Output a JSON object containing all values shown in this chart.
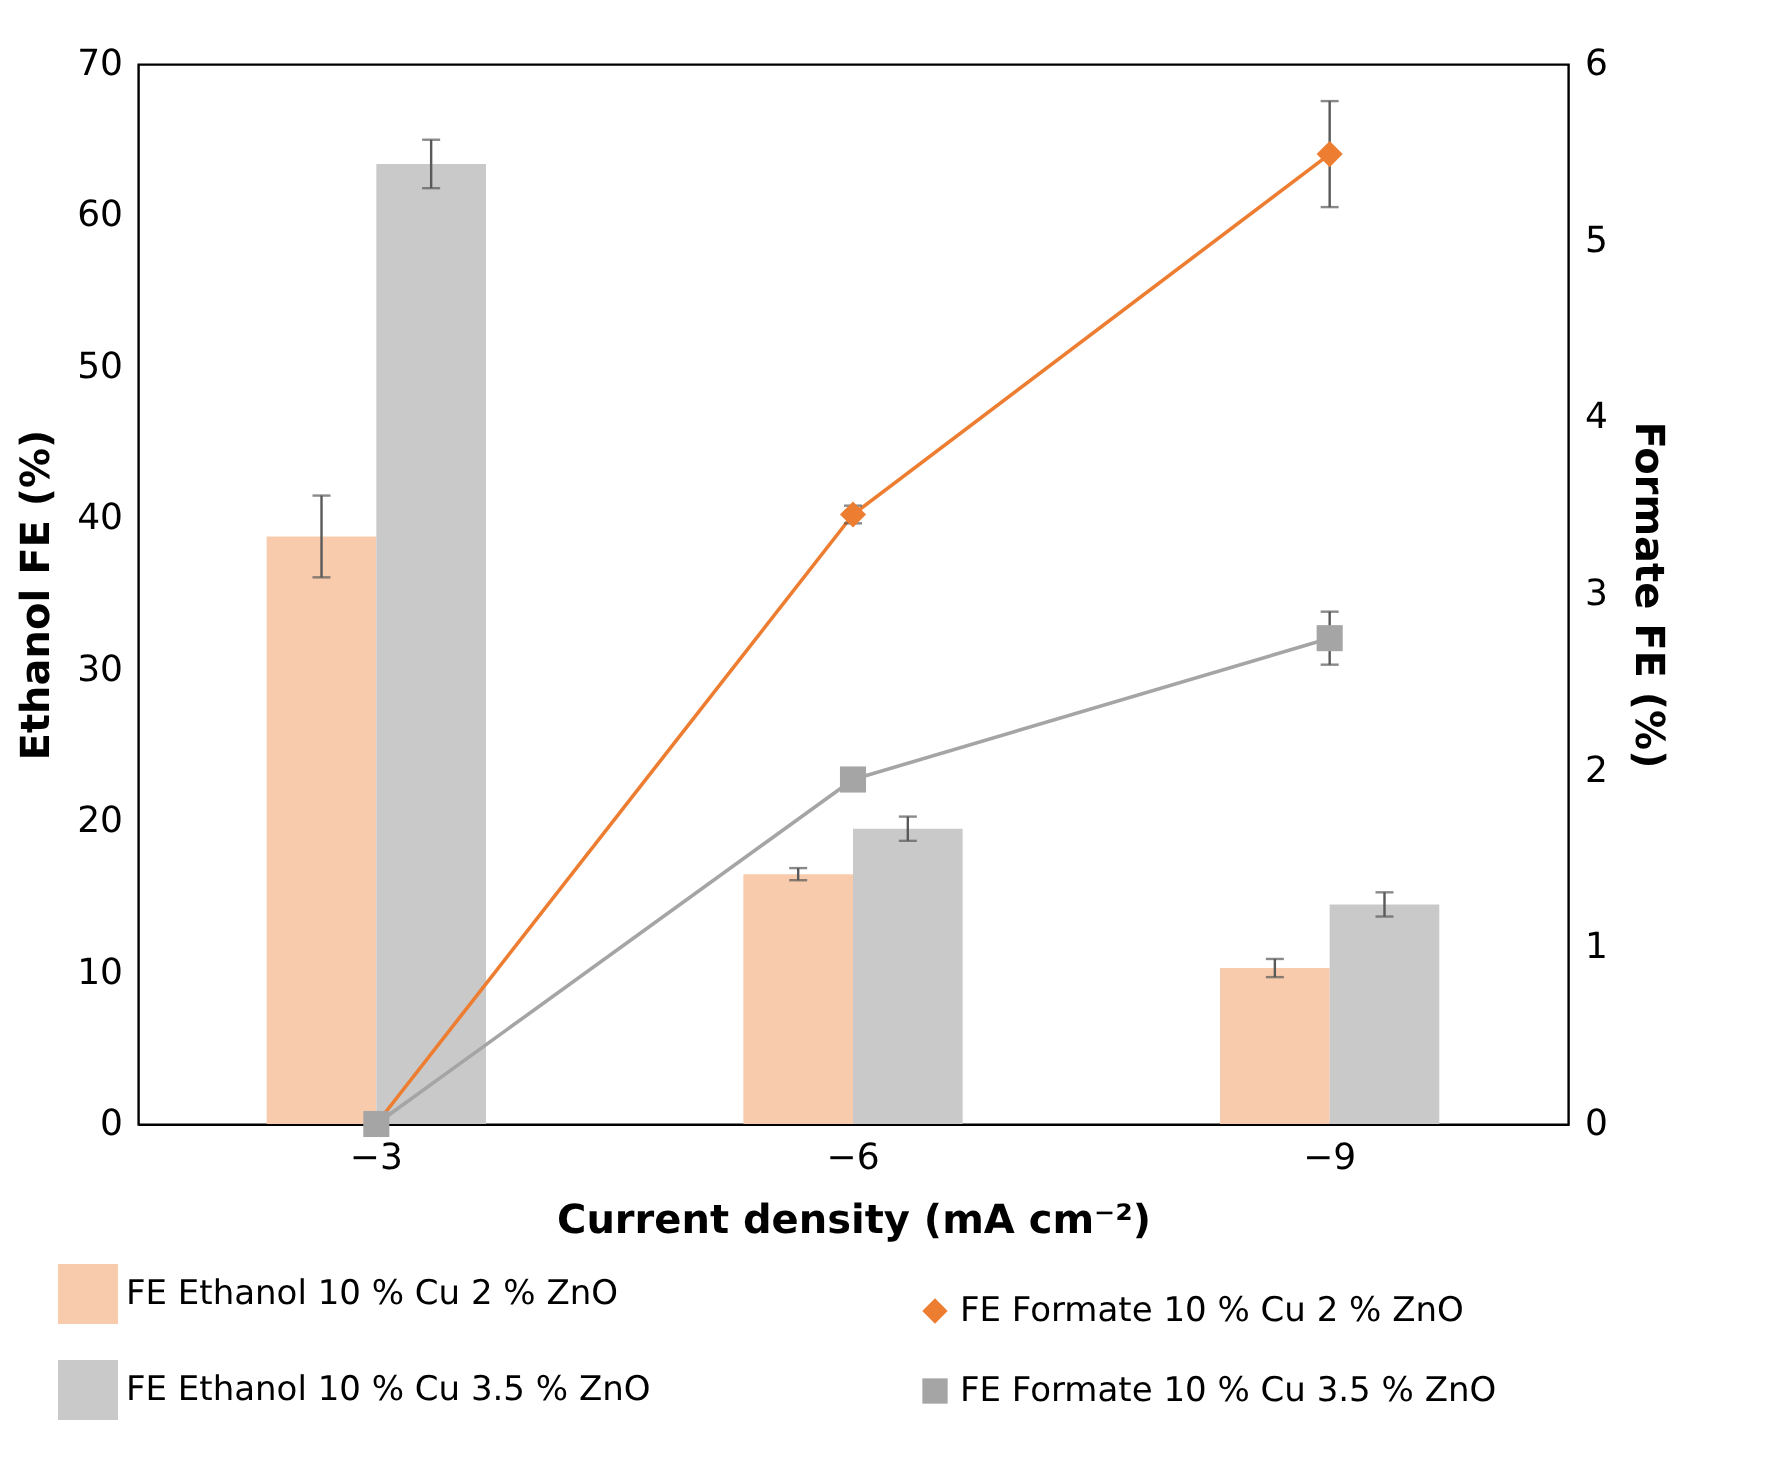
{
  "chart_data": {
    "type": "bar",
    "xlabel": "Current density (mA cm⁻²)",
    "ylabel": "Ethanol FE (%)",
    "y2label": "Formate FE (%)",
    "categories": [
      "−3",
      "−6",
      "−9"
    ],
    "series": [
      {
        "name": "FE Ethanol 10 % Cu 2 % ZnO",
        "color": "#f8cbad",
        "values": [
          38.8,
          16.5,
          10.3
        ],
        "errors": [
          2.7,
          0.4,
          0.6
        ]
      },
      {
        "name": "FE Ethanol 10 % Cu 3.5 % ZnO",
        "color": "#c9c9c9",
        "values": [
          63.4,
          19.5,
          14.5
        ],
        "errors": [
          1.6,
          0.8,
          0.8
        ]
      },
      {
        "name": "FE Formate 10 % Cu 2 % ZnO",
        "type": "line",
        "axis": "y2",
        "marker": "diamond",
        "color": "#ed7d31",
        "values": [
          0,
          3.45,
          5.49
        ],
        "errors": [
          null,
          0.05,
          0.3
        ]
      },
      {
        "name": "FE Formate 10 % Cu 3.5 % ZnO",
        "type": "line",
        "axis": "y2",
        "marker": "square",
        "color": "#a5a5a5",
        "values": [
          0,
          1.95,
          2.75
        ],
        "errors": [
          null,
          null,
          0.15
        ]
      }
    ],
    "ylim": [
      0,
      70
    ],
    "yticks": [
      0,
      10,
      20,
      30,
      40,
      50,
      60,
      70
    ],
    "y2lim": [
      0,
      6
    ],
    "y2ticks": [
      0,
      1,
      2,
      3,
      4,
      5,
      6
    ],
    "grid": false,
    "legend": "bottom"
  }
}
